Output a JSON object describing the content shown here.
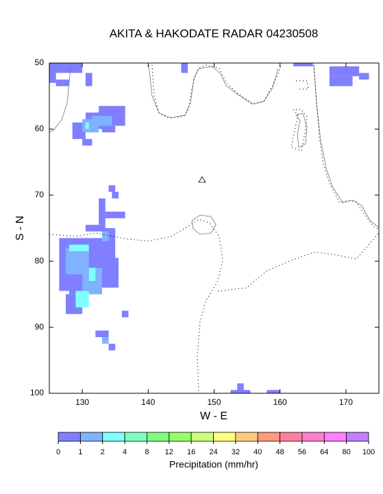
{
  "chart_data": {
    "type": "heatmap",
    "title": "AKITA & HAKODATE RADAR 04230508",
    "xlabel": "W - E",
    "ylabel": "S - N",
    "xlim": [
      125,
      175
    ],
    "ylim": [
      100,
      50
    ],
    "xticks": [
      130,
      140,
      150,
      160,
      170
    ],
    "yticks": [
      50,
      60,
      70,
      80,
      90,
      100
    ],
    "blocks": [
      {
        "x": [
          125,
          130
        ],
        "y": [
          50,
          51.5
        ],
        "value": 0.5
      },
      {
        "x": [
          125,
          126
        ],
        "y": [
          51.5,
          53
        ],
        "value": 0.5
      },
      {
        "x": [
          126,
          128
        ],
        "y": [
          52.5,
          53.5
        ],
        "value": 0.5
      },
      {
        "x": [
          130.5,
          131.5
        ],
        "y": [
          51.5,
          53.5
        ],
        "value": 0.5
      },
      {
        "x": [
          145,
          146
        ],
        "y": [
          50,
          51.5
        ],
        "value": 0.5
      },
      {
        "x": [
          162,
          165
        ],
        "y": [
          50,
          50.5
        ],
        "value": 0.5
      },
      {
        "x": [
          167.5,
          172
        ],
        "y": [
          50.5,
          52
        ],
        "value": 0.5
      },
      {
        "x": [
          167.5,
          171
        ],
        "y": [
          52,
          53.5
        ],
        "value": 0.5
      },
      {
        "x": [
          172,
          173.5
        ],
        "y": [
          51.5,
          52.5
        ],
        "value": 0.5
      },
      {
        "x": [
          132.5,
          136.5
        ],
        "y": [
          56.5,
          59.5
        ],
        "value": 0.5
      },
      {
        "x": [
          130.5,
          134
        ],
        "y": [
          57.5,
          60
        ],
        "value": 0.5
      },
      {
        "x": [
          128.5,
          130.5
        ],
        "y": [
          59,
          61.5
        ],
        "value": 0.5
      },
      {
        "x": [
          130,
          131.5
        ],
        "y": [
          61.5,
          62.5
        ],
        "value": 0.5
      },
      {
        "x": [
          133,
          135
        ],
        "y": [
          59.5,
          60.5
        ],
        "value": 0.5
      },
      {
        "x": [
          130,
          132.5
        ],
        "y": [
          58.5,
          60.5
        ],
        "value": 1.5
      },
      {
        "x": [
          131.5,
          134.5
        ],
        "y": [
          58,
          59.5
        ],
        "value": 1.5
      },
      {
        "x": [
          130.5,
          131
        ],
        "y": [
          59,
          60
        ],
        "value": 3
      },
      {
        "x": [
          134,
          135
        ],
        "y": [
          68.5,
          69.5
        ],
        "value": 0.5
      },
      {
        "x": [
          134.5,
          135.5
        ],
        "y": [
          69.5,
          70.5
        ],
        "value": 0.5
      },
      {
        "x": [
          132.5,
          133.5
        ],
        "y": [
          70.5,
          74.5
        ],
        "value": 0.5
      },
      {
        "x": [
          133.5,
          136.5
        ],
        "y": [
          72.5,
          73.5
        ],
        "value": 0.5
      },
      {
        "x": [
          130.5,
          133.5
        ],
        "y": [
          74.5,
          75.5
        ],
        "value": 0.5
      },
      {
        "x": [
          133,
          135
        ],
        "y": [
          75,
          80
        ],
        "value": 0.5
      },
      {
        "x": [
          126.5,
          133
        ],
        "y": [
          76.5,
          84.5
        ],
        "value": 0.5
      },
      {
        "x": [
          128,
          133
        ],
        "y": [
          83,
          85
        ],
        "value": 0.5
      },
      {
        "x": [
          127.5,
          130
        ],
        "y": [
          85,
          88
        ],
        "value": 0.5
      },
      {
        "x": [
          130,
          135.5
        ],
        "y": [
          79.5,
          84
        ],
        "value": 0.5
      },
      {
        "x": [
          127.5,
          131
        ],
        "y": [
          78,
          82
        ],
        "value": 1.5
      },
      {
        "x": [
          130,
          133
        ],
        "y": [
          81,
          85
        ],
        "value": 1.5
      },
      {
        "x": [
          133,
          134
        ],
        "y": [
          75.5,
          77
        ],
        "value": 1.5
      },
      {
        "x": [
          128,
          131
        ],
        "y": [
          77.5,
          78.5
        ],
        "value": 3
      },
      {
        "x": [
          129,
          131
        ],
        "y": [
          84.5,
          87
        ],
        "value": 3
      },
      {
        "x": [
          131,
          132
        ],
        "y": [
          81,
          83
        ],
        "value": 3
      },
      {
        "x": [
          136,
          137
        ],
        "y": [
          87.5,
          88.5
        ],
        "value": 0.5
      },
      {
        "x": [
          132,
          134
        ],
        "y": [
          90.5,
          91.5
        ],
        "value": 0.5
      },
      {
        "x": [
          133,
          134
        ],
        "y": [
          91.5,
          92.5
        ],
        "value": 1.5
      },
      {
        "x": [
          134,
          135
        ],
        "y": [
          92.5,
          93.5
        ],
        "value": 0.5
      },
      {
        "x": [
          153.5,
          154.5
        ],
        "y": [
          98.5,
          100
        ],
        "value": 0.5
      },
      {
        "x": [
          152.5,
          155.5
        ],
        "y": [
          99.5,
          100
        ],
        "value": 0.5
      },
      {
        "x": [
          158,
          160
        ],
        "y": [
          99.5,
          100
        ],
        "value": 0.5
      }
    ],
    "colorbar": {
      "label": "Precipitation (mm/hr)",
      "bins": [
        0,
        1,
        2,
        4,
        8,
        12,
        16,
        24,
        32,
        40,
        48,
        56,
        64,
        80,
        100
      ],
      "colors": [
        "#7f7fff",
        "#7fb2ff",
        "#7fffff",
        "#7fffbf",
        "#7fff7f",
        "#99ff66",
        "#ccff7f",
        "#ffff7f",
        "#ffcc7f",
        "#ff997f",
        "#ff7f9f",
        "#ff7fcf",
        "#ff7fff",
        "#bf7fff"
      ]
    }
  }
}
